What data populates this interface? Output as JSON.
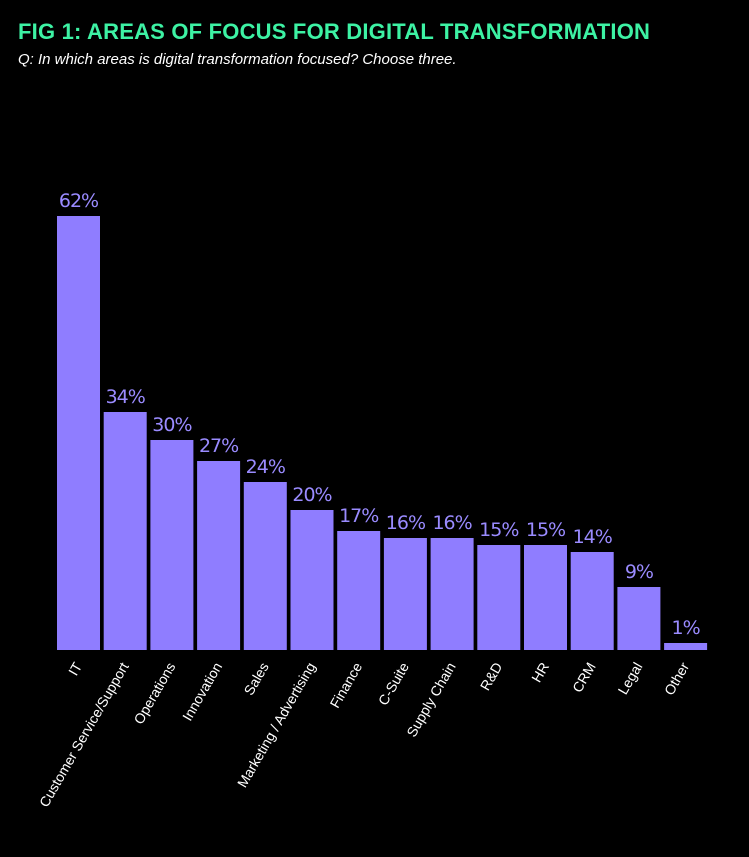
{
  "header": {
    "title": "FIG 1: AREAS OF FOCUS FOR DIGITAL TRANSFORMATION",
    "subtitle": "Q: In which areas is digital transformation focused? Choose three."
  },
  "colors": {
    "background": "#000000",
    "title": "#3df2a4",
    "subtitle": "#ffffff",
    "bar": "#8f7dff",
    "value_label": "#9a8bff",
    "category_label": "#ffffff"
  },
  "chart_data": {
    "type": "bar",
    "title": "FIG 1: AREAS OF FOCUS FOR DIGITAL TRANSFORMATION",
    "subtitle": "Q: In which areas is digital transformation focused? Choose three.",
    "xlabel": "",
    "ylabel": "",
    "unit": "%",
    "ylim": [
      0,
      62
    ],
    "grid": false,
    "legend": "none",
    "categories": [
      "IT",
      "Customer Service/Support",
      "Operations",
      "Innovation",
      "Sales",
      "Marketing / Advertising",
      "Finance",
      "C-Suite",
      "Supply Chain",
      "R&D",
      "HR",
      "CRM",
      "Legal",
      "Other"
    ],
    "values": [
      62,
      34,
      30,
      27,
      24,
      20,
      17,
      16,
      16,
      15,
      15,
      14,
      9,
      1
    ],
    "value_labels": [
      "62%",
      "34%",
      "30%",
      "27%",
      "24%",
      "20%",
      "17%",
      "16%",
      "16%",
      "15%",
      "15%",
      "14%",
      "9%",
      "1%"
    ]
  }
}
